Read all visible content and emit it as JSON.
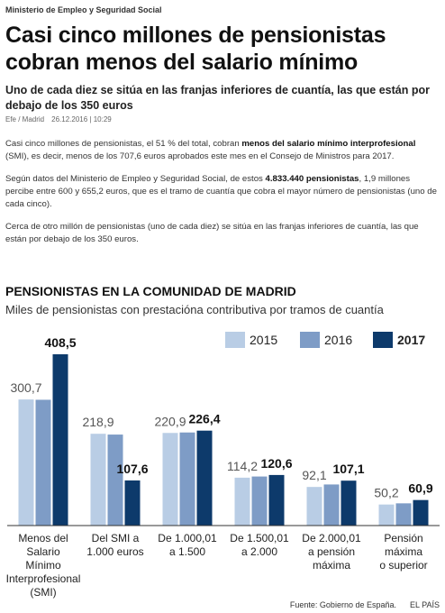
{
  "kicker": "Ministerio de Empleo y Seguridad Social",
  "headline": "Casi cinco millones de pensionistas cobran menos del salario mínimo",
  "subtitle": "Uno de cada diez se sitúa en las franjas inferiores de cuantía, las que están por debajo de los 350 euros",
  "byline": {
    "author": "Efe / Madrid",
    "date": "26.12.2016 | 10:29"
  },
  "paragraphs": [
    [
      {
        "text": "Casi cinco millones de pensionistas, el 51 % del total, cobran ",
        "bold": false
      },
      {
        "text": "menos del salario mínimo interprofesional",
        "bold": true
      },
      {
        "text": " (SMI), es decir, menos de los 707,6 euros aprobados este mes en el Consejo de Ministros para 2017.",
        "bold": false
      }
    ],
    [
      {
        "text": "Según datos del Ministerio de Empleo y Seguridad Social, de estos ",
        "bold": false
      },
      {
        "text": "4.833.440 pensionistas",
        "bold": true
      },
      {
        "text": ", 1,9 millones percibe entre 600 y 655,2 euros, que es el tramo de cuantía que cobra el mayor número de pensionistas (uno de cada cinco).",
        "bold": false
      }
    ],
    [
      {
        "text": "Cerca de otro millón de pensionistas (uno de cada diez) se sitúa en las franjas inferiores de cuantía, las que están por debajo de los 350 euros.",
        "bold": false
      }
    ]
  ],
  "chart_data": {
    "type": "bar",
    "title": "PENSIONISTAS EN LA COMUNIDAD DE MADRID",
    "subtitle": "Miles de pensionistas con prestacióna contributiva por tramos de cuantía",
    "categories": [
      "Menos del\nSalario\nMínimo\nInterprofesional\n(SMI)",
      "Del SMI a\n1.000 euros",
      "De 1.000,01\na 1.500",
      "De 1.500,01\na 2.000",
      "De 2.000,01\na pensión\nmáxima",
      "Pensión\nmáxima\no superior"
    ],
    "series": [
      {
        "name": "2015",
        "color": "#b9cde5",
        "values": [
          300.7,
          218.9,
          220.9,
          114.2,
          92.1,
          50.2
        ],
        "value_labels": [
          "300,7",
          "218,9",
          "220,9",
          "114,2",
          "92,1",
          "50,2"
        ],
        "bold": false
      },
      {
        "name": "2016",
        "color": "#7e9cc6",
        "values": [
          300,
          217,
          222,
          117,
          98,
          53
        ],
        "bold": false
      },
      {
        "name": "2017",
        "color": "#0d3a6b",
        "values": [
          408.5,
          107.6,
          226.4,
          120.6,
          107.1,
          60.9
        ],
        "value_labels": [
          "408,5",
          "107,6",
          "226,4",
          "120,6",
          "107,1",
          "60,9"
        ],
        "bold": true
      }
    ],
    "source": "Fuente: Gobierno de España.",
    "brand": "EL PAÍS"
  }
}
